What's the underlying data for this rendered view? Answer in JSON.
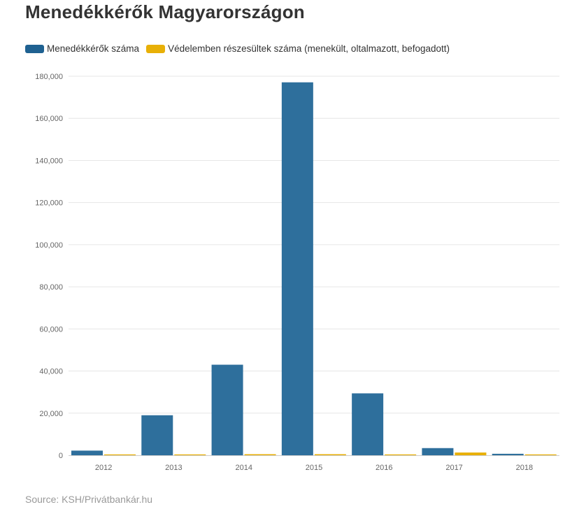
{
  "chart_data": {
    "type": "bar",
    "title": "Menedékkérők Magyarországon",
    "categories": [
      "2012",
      "2013",
      "2014",
      "2015",
      "2016",
      "2017",
      "2018"
    ],
    "series": [
      {
        "name": "Menedékkérők száma",
        "color": "#2e6f9c",
        "values": [
          2200,
          19000,
          43000,
          177100,
          29400,
          3400,
          700
        ]
      },
      {
        "name": "Védelemben részesültek száma (menekült, oltalmazott, befogadott)",
        "color": "#e8b007",
        "values": [
          400,
          400,
          500,
          500,
          400,
          1300,
          400
        ]
      }
    ],
    "ylim": [
      0,
      180000
    ],
    "yticks": [
      0,
      20000,
      40000,
      60000,
      80000,
      100000,
      120000,
      140000,
      160000,
      180000
    ],
    "grid": true,
    "legend_position": "top-left",
    "source": "Source: KSH/Privátbankár.hu"
  }
}
